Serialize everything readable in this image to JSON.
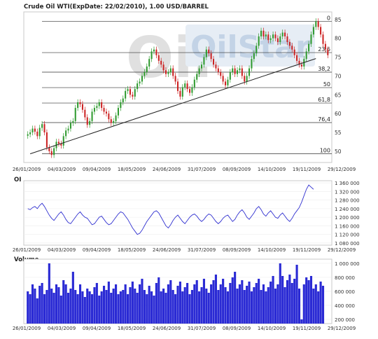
{
  "chart_data": [
    {
      "type": "candlestick",
      "title": "Crude Oil WTI(ExpDate: 22/02/2010), 1.00 USD/BARREL",
      "x_tick_labels": [
        "26/01/2009",
        "04/03/2009",
        "09/04/2009",
        "18/05/2009",
        "24/06/2009",
        "31/07/2009",
        "08/09/2009",
        "14/10/2009",
        "19/11/2009",
        "29/12/2009"
      ],
      "ylim": [
        47,
        87
      ],
      "y_ticks": [
        50,
        55,
        60,
        65,
        70,
        75,
        80,
        85
      ],
      "watermark": "OilStar",
      "fibonacci_levels": [
        {
          "label": "0",
          "value": 84.5
        },
        {
          "label": "23,6",
          "value": 76.2
        },
        {
          "label": "38,2",
          "value": 71.0
        },
        {
          "label": "50",
          "value": 66.9
        },
        {
          "label": "61,8",
          "value": 62.8
        },
        {
          "label": "76,4",
          "value": 57.6
        },
        {
          "label": "100",
          "value": 49.3
        }
      ],
      "trendline": {
        "start": [
          1,
          49.3
        ],
        "end": [
          121,
          74.6
        ]
      },
      "closes": [
        54.5,
        55.0,
        56.0,
        55.2,
        54.0,
        56.2,
        57.2,
        55.0,
        51.0,
        50.0,
        49.0,
        50.8,
        52.5,
        52.0,
        51.5,
        54.0,
        55.5,
        56.0,
        57.5,
        58.0,
        61.5,
        63.0,
        62.5,
        61.0,
        59.0,
        57.0,
        58.0,
        60.5,
        61.5,
        62.0,
        63.0,
        61.5,
        60.5,
        60.0,
        58.5,
        57.5,
        58.0,
        59.5,
        61.5,
        63.0,
        64.0,
        66.0,
        66.5,
        65.0,
        64.5,
        66.5,
        68.0,
        68.5,
        70.0,
        71.0,
        72.5,
        74.5,
        76.5,
        77.0,
        75.5,
        74.0,
        73.0,
        71.5,
        70.5,
        71.0,
        72.0,
        70.0,
        68.5,
        66.0,
        64.5,
        67.0,
        68.0,
        66.5,
        65.5,
        67.0,
        69.0,
        70.5,
        72.0,
        73.0,
        75.0,
        77.0,
        76.0,
        74.5,
        73.0,
        72.0,
        71.0,
        70.0,
        68.5,
        67.5,
        69.0,
        71.0,
        72.0,
        70.5,
        71.5,
        72.0,
        70.0,
        68.5,
        70.0,
        72.0,
        74.5,
        76.0,
        78.0,
        80.5,
        82.0,
        80.5,
        81.0,
        79.5,
        80.0,
        81.0,
        80.0,
        79.0,
        80.5,
        81.5,
        80.5,
        79.0,
        78.0,
        77.0,
        75.5,
        74.0,
        73.0,
        72.5,
        74.5,
        76.5,
        78.5,
        81.0,
        83.0,
        84.5,
        83.0,
        81.0,
        78.5,
        77.0,
        75.5
      ]
    },
    {
      "type": "line",
      "title": "OI",
      "x_tick_labels": [
        "26/01/2009",
        "04/03/2009",
        "09/04/2009",
        "18/05/2009",
        "24/06/2009",
        "31/07/2009",
        "08/09/2009",
        "14/10/2009",
        "19/11/2009",
        "29/12/2009"
      ],
      "ylim": [
        1070000,
        1370000
      ],
      "y_tick_labels": [
        "1 360 000",
        "1 320 000",
        "1 280 000",
        "1 240 000",
        "1 200 000",
        "1 160 000",
        "1 120 000",
        "1 080 000"
      ],
      "y_tick_values": [
        1360000,
        1320000,
        1280000,
        1240000,
        1200000,
        1160000,
        1120000,
        1080000
      ],
      "values": [
        1240000,
        1235000,
        1245000,
        1250000,
        1240000,
        1255000,
        1265000,
        1250000,
        1230000,
        1210000,
        1195000,
        1185000,
        1200000,
        1215000,
        1225000,
        1210000,
        1190000,
        1175000,
        1170000,
        1185000,
        1200000,
        1215000,
        1225000,
        1210000,
        1200000,
        1195000,
        1180000,
        1165000,
        1170000,
        1185000,
        1200000,
        1205000,
        1190000,
        1175000,
        1165000,
        1170000,
        1185000,
        1200000,
        1215000,
        1225000,
        1220000,
        1205000,
        1190000,
        1170000,
        1150000,
        1135000,
        1120000,
        1125000,
        1140000,
        1160000,
        1180000,
        1195000,
        1210000,
        1225000,
        1230000,
        1220000,
        1200000,
        1180000,
        1160000,
        1150000,
        1165000,
        1185000,
        1200000,
        1210000,
        1195000,
        1180000,
        1170000,
        1185000,
        1200000,
        1210000,
        1215000,
        1205000,
        1190000,
        1180000,
        1190000,
        1205000,
        1215000,
        1210000,
        1195000,
        1180000,
        1170000,
        1180000,
        1195000,
        1205000,
        1210000,
        1195000,
        1180000,
        1190000,
        1210000,
        1225000,
        1235000,
        1220000,
        1200000,
        1190000,
        1205000,
        1220000,
        1240000,
        1250000,
        1235000,
        1215000,
        1205000,
        1220000,
        1230000,
        1215000,
        1200000,
        1195000,
        1210000,
        1220000,
        1205000,
        1190000,
        1180000,
        1195000,
        1215000,
        1230000,
        1245000,
        1270000,
        1300000,
        1330000,
        1350000,
        1340000,
        1330000
      ]
    },
    {
      "type": "bar",
      "title": "Volume",
      "x_tick_labels": [
        "26/01/2009",
        "04/03/2009",
        "09/04/2009",
        "18/05/2009",
        "24/06/2009",
        "31/07/2009",
        "08/09/2009",
        "14/10/2009",
        "19/11/2009",
        "29/12/2009"
      ],
      "ylim": [
        140000,
        1060000
      ],
      "y_tick_labels": [
        "1 000 000",
        "800 000",
        "600 000",
        "400 000",
        "200 000"
      ],
      "y_tick_values": [
        1000000,
        800000,
        600000,
        400000,
        200000
      ],
      "values": [
        600000,
        560000,
        700000,
        640000,
        500000,
        680000,
        720000,
        560000,
        620000,
        1000000,
        640000,
        580000,
        700000,
        660000,
        540000,
        760000,
        700000,
        580000,
        640000,
        880000,
        620000,
        560000,
        700000,
        600000,
        520000,
        640000,
        600000,
        560000,
        660000,
        720000,
        540000,
        600000,
        680000,
        620000,
        740000,
        580000,
        640000,
        700000,
        560000,
        600000,
        620000,
        700000,
        560000,
        660000,
        740000,
        640000,
        580000,
        700000,
        780000,
        620000,
        560000,
        680000,
        600000,
        540000,
        720000,
        800000,
        600000,
        640000,
        580000,
        700000,
        760000,
        620000,
        560000,
        680000,
        740000,
        600000,
        660000,
        720000,
        560000,
        620000,
        700000,
        760000,
        600000,
        660000,
        780000,
        640000,
        580000,
        700000,
        760000,
        840000,
        620000,
        700000,
        780000,
        660000,
        600000,
        720000,
        800000,
        880000,
        640000,
        700000,
        760000,
        620000,
        680000,
        740000,
        600000,
        660000,
        720000,
        780000,
        620000,
        700000,
        600000,
        660000,
        740000,
        820000,
        640000,
        700000,
        1000000,
        820000,
        660000,
        760000,
        840000,
        720000,
        780000,
        980000,
        640000,
        200000,
        700000,
        800000,
        760000,
        820000,
        640000,
        700000,
        600000,
        740000,
        680000
      ]
    }
  ]
}
